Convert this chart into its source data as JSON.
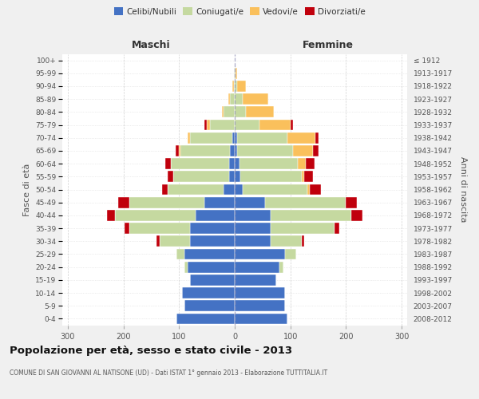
{
  "age_groups": [
    "0-4",
    "5-9",
    "10-14",
    "15-19",
    "20-24",
    "25-29",
    "30-34",
    "35-39",
    "40-44",
    "45-49",
    "50-54",
    "55-59",
    "60-64",
    "65-69",
    "70-74",
    "75-79",
    "80-84",
    "85-89",
    "90-94",
    "95-99",
    "100+"
  ],
  "birth_years": [
    "2008-2012",
    "2003-2007",
    "1998-2002",
    "1993-1997",
    "1988-1992",
    "1983-1987",
    "1978-1982",
    "1973-1977",
    "1968-1972",
    "1963-1967",
    "1958-1962",
    "1953-1957",
    "1948-1952",
    "1943-1947",
    "1938-1942",
    "1933-1937",
    "1928-1932",
    "1923-1927",
    "1918-1922",
    "1913-1917",
    "≤ 1912"
  ],
  "male": {
    "celibi": [
      105,
      90,
      95,
      80,
      85,
      90,
      80,
      80,
      70,
      55,
      20,
      10,
      10,
      8,
      5,
      0,
      0,
      0,
      0,
      0,
      0
    ],
    "coniugati": [
      0,
      0,
      0,
      0,
      5,
      15,
      55,
      110,
      145,
      135,
      100,
      100,
      105,
      90,
      75,
      45,
      20,
      8,
      2,
      1,
      0
    ],
    "vedovi": [
      0,
      0,
      0,
      0,
      0,
      0,
      0,
      0,
      0,
      0,
      0,
      0,
      0,
      3,
      5,
      5,
      3,
      3,
      2,
      0,
      0
    ],
    "divorziati": [
      0,
      0,
      0,
      0,
      0,
      0,
      5,
      8,
      15,
      20,
      10,
      10,
      10,
      5,
      0,
      5,
      0,
      0,
      0,
      0,
      0
    ]
  },
  "female": {
    "nubili": [
      95,
      90,
      90,
      75,
      80,
      90,
      65,
      65,
      65,
      55,
      15,
      10,
      8,
      5,
      5,
      0,
      0,
      0,
      0,
      0,
      0
    ],
    "coniugate": [
      0,
      0,
      0,
      0,
      8,
      20,
      55,
      115,
      145,
      145,
      115,
      110,
      105,
      100,
      90,
      45,
      20,
      15,
      5,
      2,
      0
    ],
    "vedove": [
      0,
      0,
      0,
      0,
      0,
      0,
      0,
      0,
      0,
      0,
      5,
      5,
      15,
      35,
      50,
      55,
      50,
      45,
      15,
      2,
      0
    ],
    "divorziate": [
      0,
      0,
      0,
      0,
      0,
      0,
      5,
      8,
      20,
      20,
      20,
      15,
      15,
      10,
      5,
      5,
      0,
      0,
      0,
      0,
      0
    ]
  },
  "colors": {
    "celibi": "#4472C4",
    "coniugati": "#C5D9A0",
    "vedovi": "#FAC05C",
    "divorziati": "#C0000C"
  },
  "title": "Popolazione per età, sesso e stato civile - 2013",
  "subtitle": "COMUNE DI SAN GIOVANNI AL NATISONE (UD) - Dati ISTAT 1° gennaio 2013 - Elaborazione TUTTITALIA.IT",
  "xlabel_left": "Maschi",
  "xlabel_right": "Femmine",
  "ylabel_left": "Fasce di età",
  "ylabel_right": "Anni di nascita",
  "xlim": 310,
  "bg_color": "#f0f0f0",
  "plot_bg": "#ffffff",
  "grid_color": "#cccccc"
}
